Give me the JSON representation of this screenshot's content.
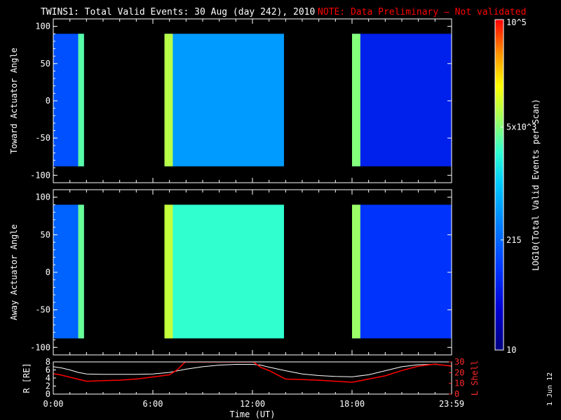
{
  "title": {
    "main": "TWINS1: Total Valid Events: 30 Aug (day 242), 2010",
    "note": "NOTE: Data Preliminary — Not validated"
  },
  "colorbar": {
    "label": "LOG10(Total Valid Events per Scan)",
    "ticks": [
      {
        "value": 100000,
        "label": "10^5"
      },
      {
        "value": 5000,
        "label": "5x10^3"
      },
      {
        "value": 215,
        "label": "215"
      },
      {
        "value": 10,
        "label": "10"
      }
    ],
    "scale": "log",
    "range": [
      10,
      100000
    ]
  },
  "stamp": "1 Jun 12",
  "chart_data": [
    {
      "type": "heatmap",
      "panel": "toward",
      "ylabel": "Toward Actuator Angle",
      "ylim": [
        -110,
        110
      ],
      "yticks": [
        100,
        50,
        0,
        -50,
        -100
      ],
      "xlim": [
        0,
        24
      ],
      "x_unit": "hours UT",
      "angle_range": [
        -88,
        90
      ],
      "colorscale": "log",
      "data_blocks": [
        {
          "t_start": 0.0,
          "t_end": 1.85,
          "typical_value": 150,
          "edge_enhancement": {
            "t_start": 1.5,
            "t_end": 1.85,
            "value": 3500
          }
        },
        {
          "t_start": 6.7,
          "t_end": 13.9,
          "typical_value": 500,
          "edge_enhancement": {
            "t_start": 6.7,
            "t_end": 7.2,
            "value": 8000
          }
        },
        {
          "t_start": 18.0,
          "t_end": 23.99,
          "typical_value": 60,
          "edge_enhancement": {
            "t_start": 18.0,
            "t_end": 18.5,
            "value": 5000
          }
        }
      ]
    },
    {
      "type": "heatmap",
      "panel": "away",
      "ylabel": "Away Actuator Angle",
      "ylim": [
        -110,
        110
      ],
      "yticks": [
        100,
        50,
        0,
        -50,
        -100
      ],
      "xlim": [
        0,
        24
      ],
      "x_unit": "hours UT",
      "angle_range": [
        -88,
        90
      ],
      "colorscale": "log",
      "data_blocks": [
        {
          "t_start": 0.0,
          "t_end": 1.85,
          "typical_value": 200,
          "edge_enhancement": {
            "t_start": 1.5,
            "t_end": 1.85,
            "value": 4000
          }
        },
        {
          "t_start": 6.7,
          "t_end": 13.9,
          "typical_value": 2500,
          "edge_enhancement": {
            "t_start": 6.7,
            "t_end": 7.2,
            "value": 9000
          }
        },
        {
          "t_start": 18.0,
          "t_end": 23.99,
          "typical_value": 90,
          "edge_enhancement": {
            "t_start": 18.0,
            "t_end": 18.5,
            "value": 6000
          }
        }
      ]
    },
    {
      "type": "line",
      "panel": "orbit",
      "xlabel": "Time (UT)",
      "xlim": [
        0,
        24
      ],
      "xtick_labels": [
        "0:00",
        "6:00",
        "12:00",
        "18:00",
        "23:59"
      ],
      "xtick_values": [
        0,
        6,
        12,
        18,
        24
      ],
      "ylabel_left": "R [RE]",
      "ylim_left": [
        0,
        8
      ],
      "yticks_left": [
        0,
        2,
        4,
        6,
        8
      ],
      "ylabel_right": "L Shell",
      "ylim_right": [
        0,
        30
      ],
      "yticks_right": [
        0,
        10,
        20,
        30
      ],
      "series": [
        {
          "name": "R [RE]",
          "axis": "left",
          "color": "#ffffff",
          "x": [
            0,
            0.5,
            1.0,
            1.5,
            2.0,
            3.0,
            4.0,
            5.0,
            6.0,
            7.0,
            8.0,
            9.0,
            10.0,
            11.0,
            12.0,
            12.5,
            13.0,
            14.0,
            15.0,
            16.0,
            17.0,
            18.0,
            19.0,
            20.0,
            21.0,
            22.0,
            23.0,
            24.0
          ],
          "y": [
            6.8,
            6.5,
            6.0,
            5.4,
            5.0,
            4.9,
            4.9,
            4.9,
            5.0,
            5.4,
            6.2,
            6.8,
            7.2,
            7.4,
            7.4,
            7.2,
            6.7,
            5.8,
            5.0,
            4.6,
            4.4,
            4.3,
            4.8,
            5.8,
            6.8,
            7.3,
            7.4,
            7.0
          ]
        },
        {
          "name": "L Shell",
          "axis": "right",
          "color": "#ff0000",
          "x": [
            0,
            0.4,
            1.2,
            2.0,
            3.0,
            4.0,
            5.0,
            6.0,
            7.0,
            7.5,
            7.95,
            12.05,
            12.5,
            13.0,
            13.5,
            14.0,
            15.0,
            16.0,
            17.0,
            18.0,
            19.0,
            20.0,
            21.0,
            22.0,
            23.0,
            24.0
          ],
          "y": [
            19,
            18,
            15,
            12,
            12.5,
            13,
            14,
            16,
            18,
            23,
            30,
            30,
            25,
            22,
            18,
            14,
            13.5,
            13,
            12,
            11,
            14,
            17,
            22,
            26,
            28,
            26
          ]
        }
      ]
    }
  ]
}
